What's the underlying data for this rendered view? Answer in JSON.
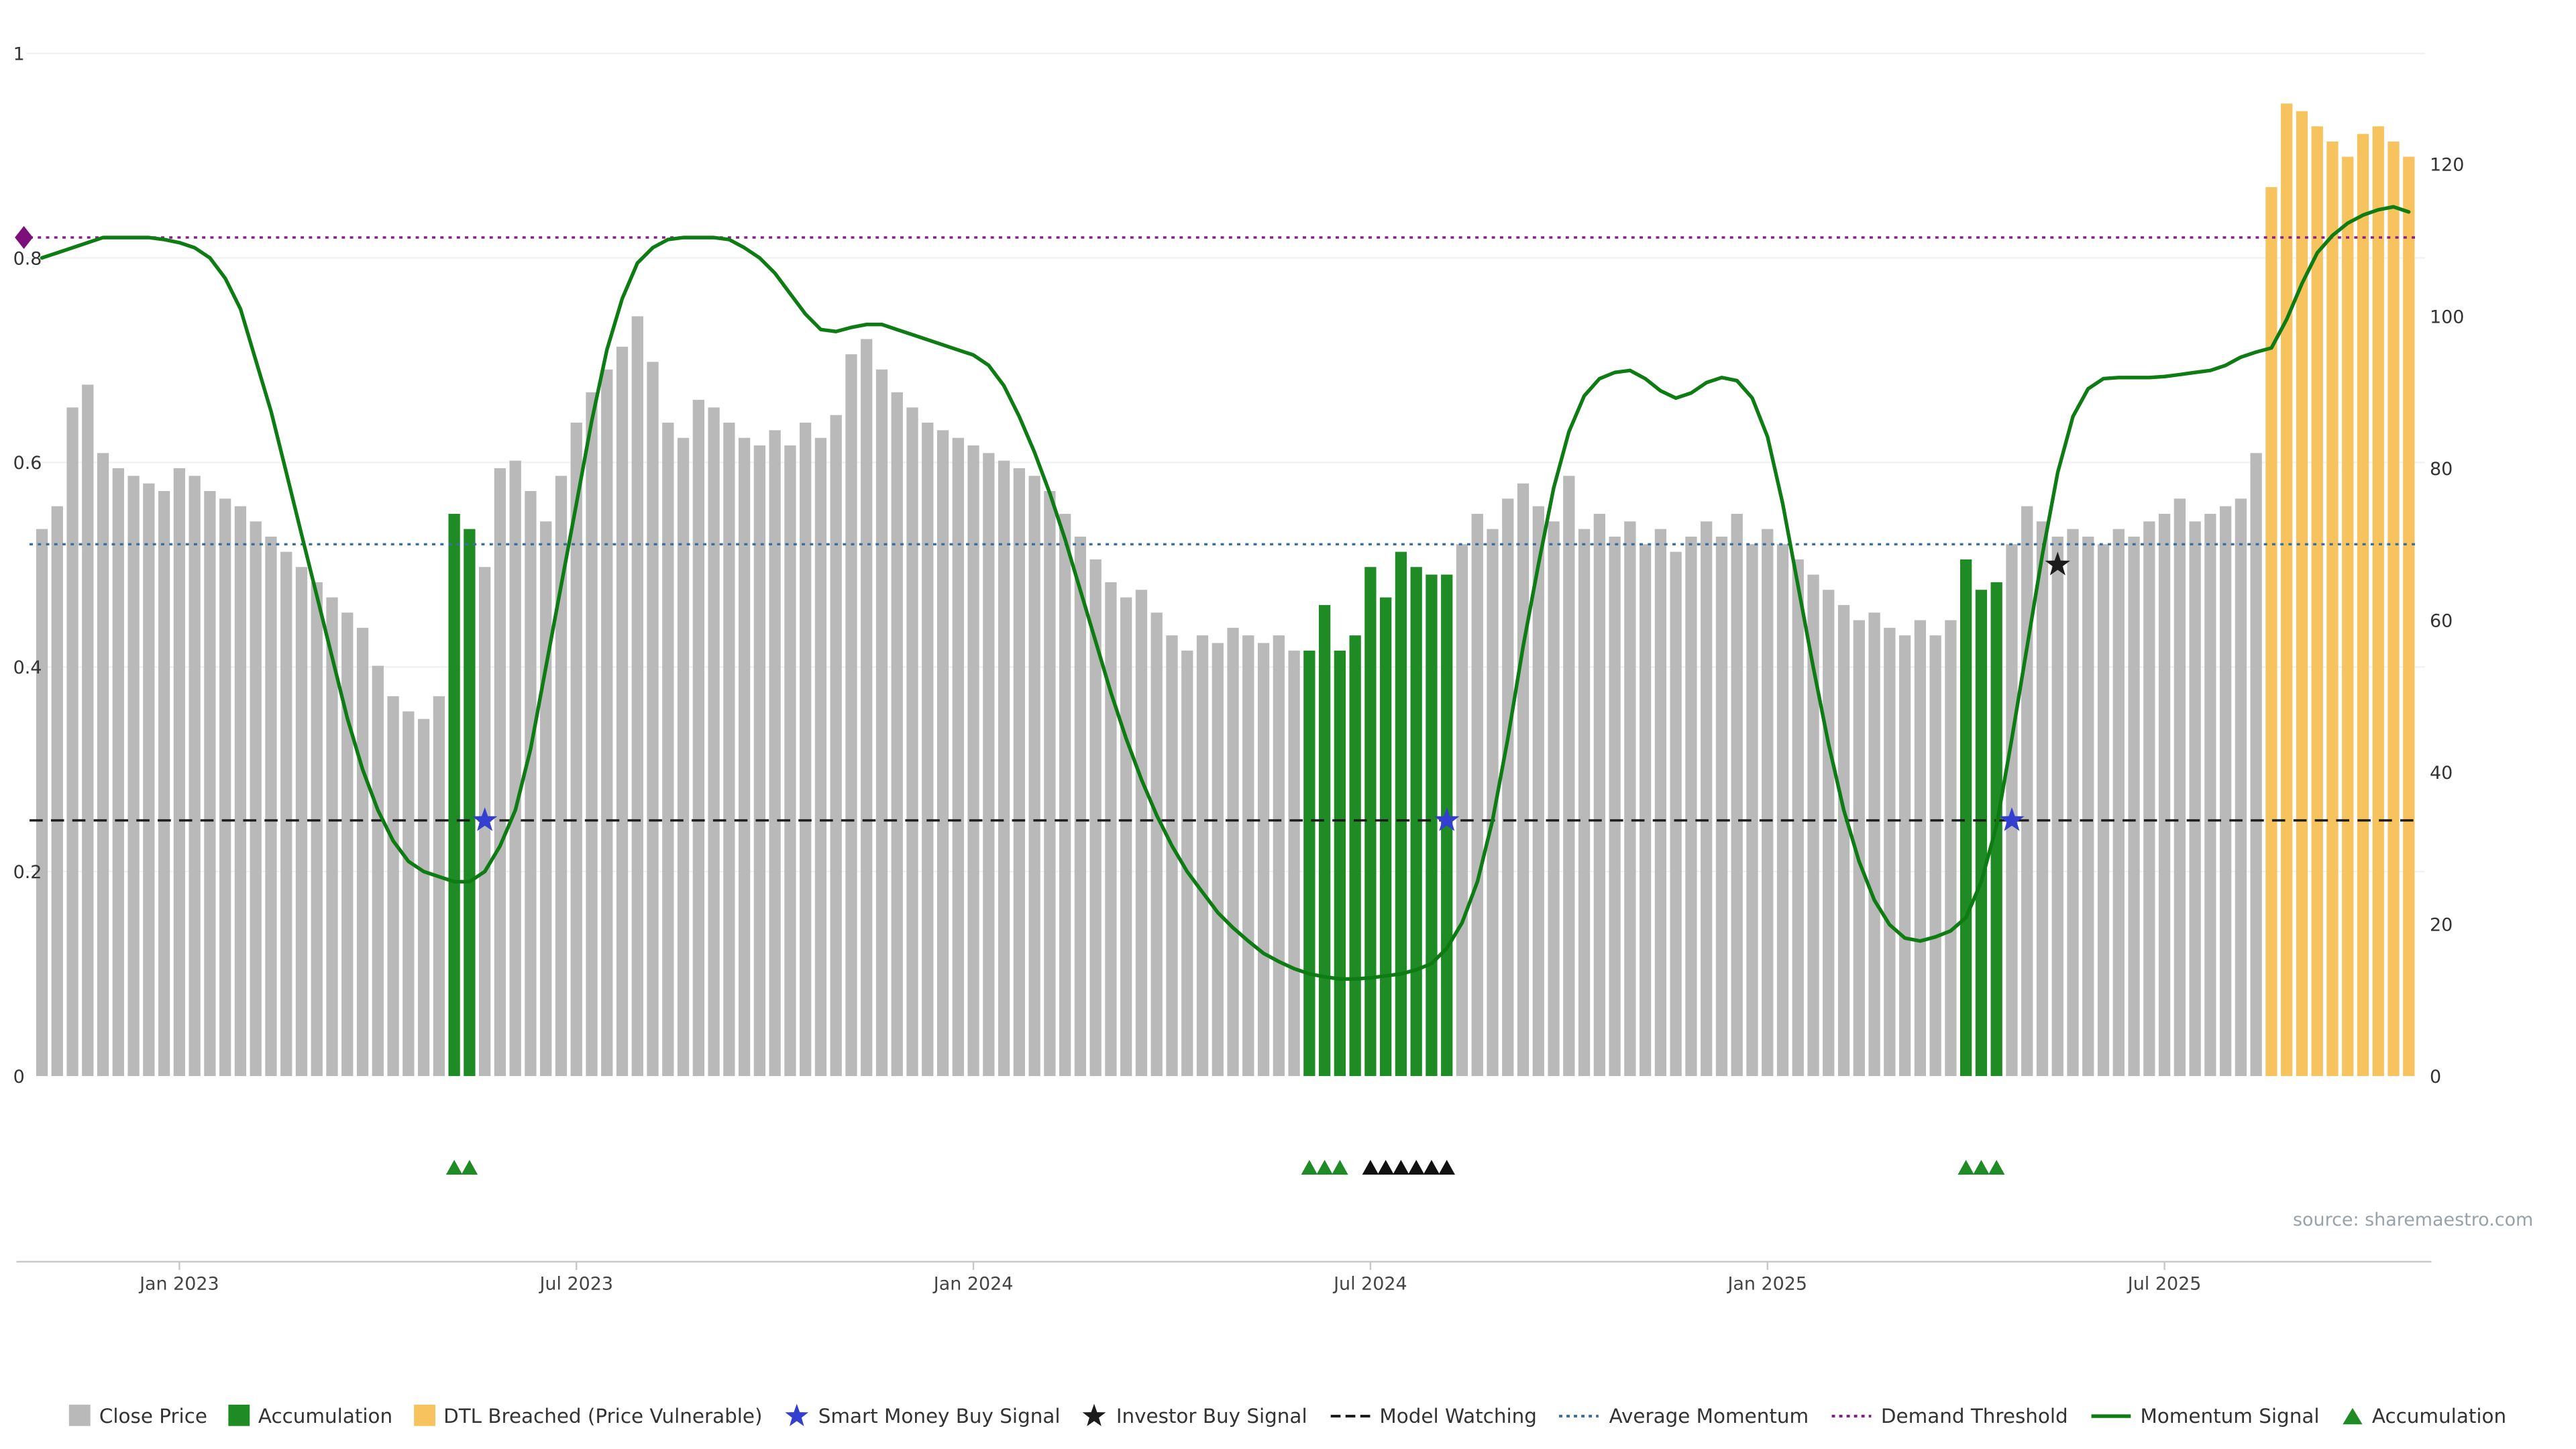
{
  "meta": {
    "source_text": "source: sharemaestro.com"
  },
  "chart_data": {
    "type": "bar",
    "subtype": "weekly close-price bars with momentum oscillator line overlay",
    "title": "",
    "x_tick_labels": [
      "Jan 2023",
      "Jul 2023",
      "Jan 2024",
      "Jul 2024",
      "Jan 2025",
      "Jul 2025"
    ],
    "x_tick_week_indices": [
      9,
      35,
      61,
      87,
      113,
      139
    ],
    "left_axis": {
      "ticks": [
        0,
        0.2,
        0.4,
        0.6,
        0.8,
        1
      ],
      "min": 0,
      "max": 1
    },
    "right_axis": {
      "ticks": [
        0,
        20,
        40,
        60,
        80,
        100,
        120
      ],
      "min": 0,
      "max": 134.6
    },
    "close_price_bars": {
      "name": "Close Price",
      "axis": "right",
      "values": [
        72,
        75,
        88,
        91,
        82,
        80,
        79,
        78,
        77,
        80,
        79,
        77,
        76,
        75,
        73,
        71,
        69,
        67,
        65,
        63,
        61,
        59,
        54,
        50,
        48,
        47,
        50,
        74,
        72,
        67,
        80,
        81,
        77,
        73,
        79,
        86,
        90,
        93,
        96,
        100,
        94,
        86,
        84,
        89,
        88,
        86,
        84,
        83,
        85,
        83,
        86,
        84,
        87,
        95,
        97,
        93,
        90,
        88,
        86,
        85,
        84,
        83,
        82,
        81,
        80,
        79,
        77,
        74,
        71,
        68,
        65,
        63,
        64,
        61,
        58,
        56,
        58,
        57,
        59,
        58,
        57,
        58,
        56,
        56,
        62,
        56,
        58,
        67,
        63,
        69,
        67,
        66,
        66,
        70,
        74,
        72,
        76,
        78,
        75,
        73,
        79,
        72,
        74,
        71,
        73,
        70,
        72,
        69,
        71,
        73,
        71,
        74,
        70,
        72,
        70,
        68,
        66,
        64,
        62,
        60,
        61,
        59,
        58,
        60,
        58,
        60,
        68,
        64,
        65,
        70,
        75,
        73,
        71,
        72,
        71,
        70,
        72,
        71,
        73,
        74,
        76,
        73,
        74,
        75,
        76,
        82,
        117,
        128,
        127,
        125,
        123,
        121,
        124,
        125,
        123,
        121
      ],
      "accumulation_ranges": [
        [
          27,
          28
        ],
        [
          83,
          92
        ],
        [
          126,
          128
        ]
      ],
      "dtl_breached_range": [
        146,
        155
      ]
    },
    "momentum_line": {
      "name": "Momentum Signal",
      "axis": "left",
      "values": [
        0.8,
        0.805,
        0.81,
        0.815,
        0.82,
        0.82,
        0.82,
        0.82,
        0.818,
        0.815,
        0.81,
        0.8,
        0.78,
        0.75,
        0.7,
        0.65,
        0.59,
        0.53,
        0.47,
        0.41,
        0.35,
        0.3,
        0.26,
        0.23,
        0.21,
        0.2,
        0.195,
        0.19,
        0.19,
        0.2,
        0.225,
        0.26,
        0.32,
        0.4,
        0.48,
        0.56,
        0.64,
        0.71,
        0.76,
        0.795,
        0.81,
        0.818,
        0.82,
        0.82,
        0.82,
        0.818,
        0.81,
        0.8,
        0.785,
        0.765,
        0.745,
        0.73,
        0.728,
        0.732,
        0.735,
        0.735,
        0.73,
        0.725,
        0.72,
        0.715,
        0.71,
        0.705,
        0.695,
        0.675,
        0.645,
        0.61,
        0.57,
        0.525,
        0.475,
        0.425,
        0.375,
        0.33,
        0.29,
        0.255,
        0.225,
        0.2,
        0.18,
        0.16,
        0.145,
        0.132,
        0.12,
        0.112,
        0.105,
        0.1,
        0.097,
        0.095,
        0.095,
        0.096,
        0.098,
        0.1,
        0.104,
        0.11,
        0.125,
        0.15,
        0.19,
        0.25,
        0.33,
        0.42,
        0.5,
        0.575,
        0.63,
        0.665,
        0.682,
        0.688,
        0.69,
        0.682,
        0.67,
        0.663,
        0.668,
        0.678,
        0.683,
        0.68,
        0.663,
        0.625,
        0.56,
        0.48,
        0.4,
        0.325,
        0.26,
        0.21,
        0.172,
        0.148,
        0.135,
        0.132,
        0.136,
        0.142,
        0.155,
        0.19,
        0.245,
        0.33,
        0.42,
        0.51,
        0.59,
        0.645,
        0.672,
        0.682,
        0.683,
        0.683,
        0.683,
        0.684,
        0.686,
        0.688,
        0.69,
        0.695,
        0.703,
        0.708,
        0.712,
        0.74,
        0.775,
        0.805,
        0.822,
        0.834,
        0.842,
        0.847,
        0.85,
        0.845
      ]
    },
    "hlines": [
      {
        "name": "Demand Threshold",
        "value": 0.82,
        "style": "dotted",
        "color": "#8b1a8b"
      },
      {
        "name": "Average Momentum",
        "value": 0.52,
        "style": "dotted",
        "color": "#3b6fa0"
      },
      {
        "name": "Model Watching",
        "value": 0.25,
        "style": "dashed",
        "color": "#1a1a1a"
      }
    ],
    "markers": {
      "demand_diamond": {
        "index": 0,
        "value": 0.82,
        "color": "#7d0f7d"
      },
      "smart_money_stars": {
        "indices": [
          29,
          92,
          129
        ],
        "value": 0.25,
        "color": "#3340cf"
      },
      "investor_stars": {
        "indices": [
          132
        ],
        "value": 0.5,
        "color": "#1c1c1c"
      }
    },
    "event_triangles": {
      "accumulation_green": [
        27,
        28,
        83,
        84,
        85,
        126,
        127,
        128
      ],
      "investor_black": [
        87,
        88,
        89,
        90,
        91,
        92
      ]
    },
    "colors": {
      "close_price": "#b9b9b9",
      "accumulation": "#1f8b24",
      "dtl_breached": "#f7c35e",
      "momentum_line": "#0d7c12"
    }
  },
  "legend": {
    "items": [
      {
        "label": "Close Price",
        "swatch": "square",
        "color": "#b9b9b9"
      },
      {
        "label": "Accumulation",
        "swatch": "square",
        "color": "#1f8b24"
      },
      {
        "label": "DTL Breached (Price Vulnerable)",
        "swatch": "square",
        "color": "#f7c35e"
      },
      {
        "label": "Smart Money Buy Signal",
        "swatch": "star",
        "color": "#3340cf"
      },
      {
        "label": "Investor Buy Signal",
        "swatch": "star",
        "color": "#1c1c1c"
      },
      {
        "label": "Model Watching",
        "swatch": "dashed-line",
        "color": "#1c1c1c"
      },
      {
        "label": "Average Momentum",
        "swatch": "dotted-line",
        "color": "#3b6fa0"
      },
      {
        "label": "Demand Threshold",
        "swatch": "dotted-line",
        "color": "#8b1a8b"
      },
      {
        "label": "Momentum Signal",
        "swatch": "solid-line",
        "color": "#0d7c12"
      },
      {
        "label": "Accumulation",
        "swatch": "triangle",
        "color": "#1f8b24"
      }
    ]
  }
}
